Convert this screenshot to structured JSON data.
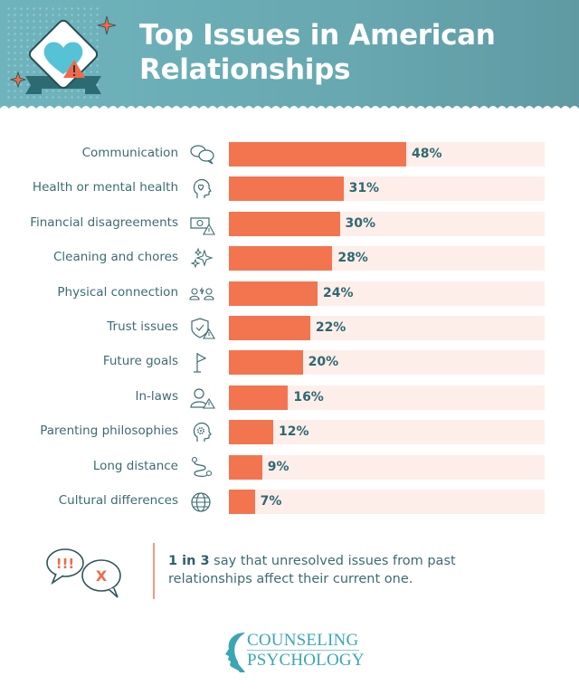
{
  "header": {
    "title_line1": "Top Issues in American",
    "title_line2": "Relationships",
    "icon": "heart-warning-badge-icon"
  },
  "colors": {
    "header_bg": "#68a8b0",
    "bar": "#f27550",
    "track": "#fdeeea",
    "label_text": "#3c6b72",
    "value_text": "#2f6870",
    "accent_teal": "#3aa6b3"
  },
  "chart_data": {
    "type": "bar",
    "orientation": "horizontal",
    "title": "Top Issues in American Relationships",
    "categories": [
      "Communication",
      "Health or mental health",
      "Financial disagreements",
      "Cleaning and chores",
      "Physical connection",
      "Trust issues",
      "Future goals",
      "In-laws",
      "Parenting philosophies",
      "Long distance",
      "Cultural differences"
    ],
    "values": [
      48,
      31,
      30,
      28,
      24,
      22,
      20,
      16,
      12,
      9,
      7
    ],
    "value_labels": [
      "48%",
      "31%",
      "30%",
      "28%",
      "24%",
      "22%",
      "20%",
      "16%",
      "12%",
      "9%",
      "7%"
    ],
    "icons": [
      "speech-bubbles-icon",
      "head-heart-icon",
      "money-warning-icon",
      "sparkles-icon",
      "people-spark-icon",
      "shield-warning-icon",
      "flag-icon",
      "person-warning-icon",
      "head-gear-icon",
      "route-icon",
      "globe-icon"
    ],
    "unit": "%",
    "xlabel": "",
    "ylabel": "",
    "grid": false,
    "legend": "none"
  },
  "callout": {
    "bold": "1 in 3",
    "text": " say that unresolved issues from past relationships affect their current one.",
    "icon_left": "!!!",
    "icon_right": "X"
  },
  "brand": {
    "line1": "COUNSELING",
    "line2": "PSYCHOLOGY"
  }
}
